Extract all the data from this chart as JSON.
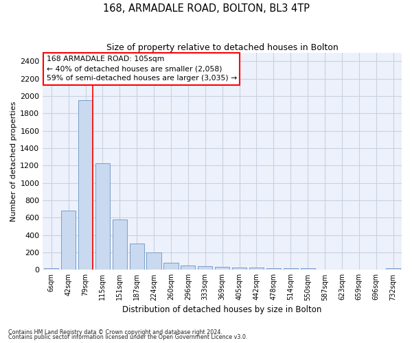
{
  "title": "168, ARMADALE ROAD, BOLTON, BL3 4TP",
  "subtitle": "Size of property relative to detached houses in Bolton",
  "xlabel": "Distribution of detached houses by size in Bolton",
  "ylabel": "Number of detached properties",
  "bar_color": "#c9d9ef",
  "bar_edge_color": "#7a9ec8",
  "grid_color": "#c8d0e0",
  "background_color": "#edf1fb",
  "categories": [
    "6sqm",
    "42sqm",
    "79sqm",
    "115sqm",
    "151sqm",
    "187sqm",
    "224sqm",
    "260sqm",
    "296sqm",
    "333sqm",
    "369sqm",
    "405sqm",
    "442sqm",
    "478sqm",
    "514sqm",
    "550sqm",
    "587sqm",
    "623sqm",
    "659sqm",
    "696sqm",
    "732sqm"
  ],
  "values": [
    15,
    680,
    1950,
    1230,
    575,
    305,
    200,
    80,
    50,
    40,
    35,
    30,
    30,
    22,
    20,
    18,
    5,
    5,
    4,
    3,
    20
  ],
  "ylim": [
    0,
    2500
  ],
  "yticks": [
    0,
    200,
    400,
    600,
    800,
    1000,
    1200,
    1400,
    1600,
    1800,
    2000,
    2200,
    2400
  ],
  "red_line_x": 2.42,
  "annotation_title": "168 ARMADALE ROAD: 105sqm",
  "annotation_line1": "← 40% of detached houses are smaller (2,058)",
  "annotation_line2": "59% of semi-detached houses are larger (3,035) →",
  "footnote1": "Contains HM Land Registry data © Crown copyright and database right 2024.",
  "footnote2": "Contains public sector information licensed under the Open Government Licence v3.0."
}
